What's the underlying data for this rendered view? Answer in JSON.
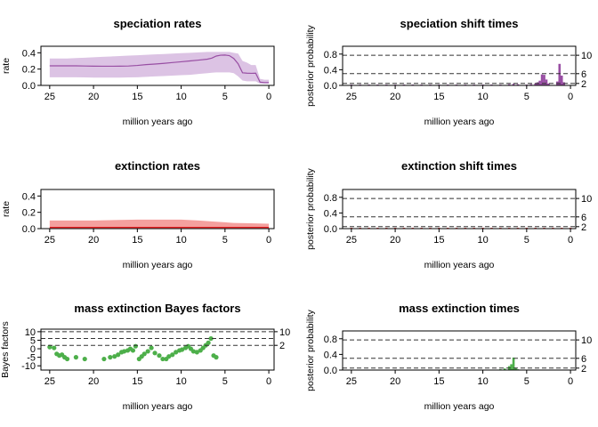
{
  "chart_data": [
    {
      "id": "spec_rates",
      "type": "area",
      "title": "speciation rates",
      "xlabel": "million years ago",
      "ylabel": "rate",
      "xlim": [
        26,
        -0.6
      ],
      "ylim": [
        0,
        0.48
      ],
      "xticks": [
        25,
        20,
        15,
        10,
        5,
        0
      ],
      "yticks": [
        0.0,
        0.2,
        0.4
      ],
      "ytick_labels": [
        "0.0",
        "0.2",
        "0.4"
      ],
      "color": "#984EA3",
      "band_color": "#DCC3E4",
      "x": [
        25,
        24,
        23,
        22,
        21,
        20,
        19,
        18,
        17,
        16,
        15,
        14,
        13,
        12,
        11,
        10,
        9,
        8,
        7,
        6.5,
        6,
        5.5,
        5,
        4.5,
        4,
        3.5,
        3,
        2.5,
        2,
        1.5,
        1,
        0.5,
        0
      ],
      "mean": [
        0.24,
        0.24,
        0.24,
        0.24,
        0.238,
        0.236,
        0.235,
        0.235,
        0.236,
        0.238,
        0.245,
        0.255,
        0.262,
        0.27,
        0.28,
        0.29,
        0.3,
        0.31,
        0.322,
        0.335,
        0.36,
        0.37,
        0.372,
        0.365,
        0.33,
        0.265,
        0.155,
        0.15,
        0.148,
        0.15,
        0.04,
        0.035,
        0.035
      ],
      "lower": [
        0.1,
        0.1,
        0.1,
        0.1,
        0.098,
        0.096,
        0.095,
        0.095,
        0.096,
        0.098,
        0.1,
        0.105,
        0.11,
        0.115,
        0.12,
        0.125,
        0.13,
        0.14,
        0.15,
        0.155,
        0.16,
        0.16,
        0.16,
        0.16,
        0.15,
        0.11,
        0.06,
        0.05,
        0.05,
        0.05,
        0.02,
        0.02,
        0.02
      ],
      "upper": [
        0.33,
        0.33,
        0.33,
        0.335,
        0.34,
        0.345,
        0.35,
        0.355,
        0.36,
        0.365,
        0.37,
        0.375,
        0.38,
        0.385,
        0.39,
        0.395,
        0.4,
        0.405,
        0.41,
        0.41,
        0.41,
        0.41,
        0.41,
        0.41,
        0.4,
        0.39,
        0.3,
        0.28,
        0.25,
        0.25,
        0.08,
        0.07,
        0.07
      ]
    },
    {
      "id": "spec_shift",
      "type": "bar",
      "title": "speciation shift times",
      "xlabel": "million years ago",
      "ylabel": "posterior probability",
      "xlim": [
        26,
        -0.6
      ],
      "ylim": [
        0,
        1.0
      ],
      "xticks": [
        25,
        20,
        15,
        10,
        5,
        0
      ],
      "yticks": [
        0.0,
        0.4,
        0.8
      ],
      "ytick_labels": [
        "0.0",
        "0.4",
        "0.8"
      ],
      "color": "#984EA3",
      "x": [
        25,
        24,
        23,
        22,
        21,
        20,
        19,
        18,
        17,
        16,
        15,
        14,
        13,
        12,
        11,
        10,
        9,
        8,
        7,
        6.5,
        6,
        5,
        4.5,
        4,
        3.75,
        3.5,
        3.25,
        3.0,
        2.75,
        2.5,
        1.5,
        1.25,
        1.0,
        0.75
      ],
      "values": [
        0.02,
        0.02,
        0.02,
        0.02,
        0.02,
        0.02,
        0.02,
        0.02,
        0.02,
        0.02,
        0.02,
        0.02,
        0.02,
        0.02,
        0.02,
        0.02,
        0.02,
        0.02,
        0.03,
        0.04,
        0.03,
        0.02,
        0.03,
        0.05,
        0.08,
        0.12,
        0.28,
        0.27,
        0.15,
        0.05,
        0.1,
        0.55,
        0.25,
        0.08
      ],
      "ref_lines": [
        0.77,
        0.3,
        0.05
      ],
      "ref_labels": [
        "10",
        "6",
        "2"
      ]
    },
    {
      "id": "ext_rates",
      "type": "area",
      "title": "extinction rates",
      "xlabel": "million years ago",
      "ylabel": "rate",
      "xlim": [
        26,
        -0.6
      ],
      "ylim": [
        0,
        0.48
      ],
      "xticks": [
        25,
        20,
        15,
        10,
        5,
        0
      ],
      "yticks": [
        0.0,
        0.2,
        0.4
      ],
      "ytick_labels": [
        "0.0",
        "0.2",
        "0.4"
      ],
      "color": "#E41A1C",
      "band_color": "#F4A09E",
      "x": [
        25,
        20,
        15,
        10,
        8,
        6,
        4,
        2,
        0
      ],
      "mean": [
        0.015,
        0.015,
        0.015,
        0.015,
        0.015,
        0.015,
        0.015,
        0.015,
        0.015
      ],
      "lower": [
        0.0,
        0.0,
        0.0,
        0.0,
        0.0,
        0.0,
        0.0,
        0.0,
        0.0
      ],
      "upper": [
        0.1,
        0.1,
        0.11,
        0.11,
        0.1,
        0.085,
        0.07,
        0.065,
        0.06
      ]
    },
    {
      "id": "ext_shift",
      "type": "bar",
      "title": "extinction shift times",
      "xlabel": "million years ago",
      "ylabel": "posterior probability",
      "xlim": [
        26,
        -0.6
      ],
      "ylim": [
        0,
        1.0
      ],
      "xticks": [
        25,
        20,
        15,
        10,
        5,
        0
      ],
      "yticks": [
        0.0,
        0.4,
        0.8
      ],
      "ytick_labels": [
        "0.0",
        "0.4",
        "0.8"
      ],
      "color": "#E41A1C",
      "x": [
        25,
        24,
        23,
        22,
        21,
        20,
        19,
        18,
        17,
        16,
        15,
        14,
        13,
        12,
        11,
        10,
        9,
        8,
        7,
        6,
        5,
        4,
        3,
        2,
        1,
        0
      ],
      "values": [
        0.02,
        0.02,
        0.02,
        0.02,
        0.02,
        0.02,
        0.02,
        0.02,
        0.02,
        0.02,
        0.02,
        0.02,
        0.02,
        0.02,
        0.02,
        0.02,
        0.02,
        0.02,
        0.02,
        0.02,
        0.02,
        0.02,
        0.02,
        0.02,
        0.02,
        0.02
      ],
      "ref_lines": [
        0.77,
        0.3,
        0.05
      ],
      "ref_labels": [
        "10",
        "6",
        "2"
      ]
    },
    {
      "id": "mass_bf",
      "type": "scatter",
      "title": "mass extinction Bayes factors",
      "xlabel": "million years ago",
      "ylabel": "Bayes factors",
      "xlim": [
        26,
        -0.6
      ],
      "ylim": [
        -12.5,
        11.5
      ],
      "xticks": [
        25,
        20,
        15,
        10,
        5,
        0
      ],
      "yticks": [
        10,
        5,
        0,
        -5,
        -10
      ],
      "ytick_labels": [
        "10",
        "5",
        "0",
        "-5",
        "-10"
      ],
      "color": "#4DAF4A",
      "ref_lines": [
        10,
        6,
        2
      ],
      "ref_labels": [
        "10",
        "6",
        "2"
      ],
      "right_labels": [
        "10",
        "2"
      ],
      "x": [
        25.0,
        24.5,
        24.2,
        23.9,
        23.6,
        23.3,
        23.0,
        22.0,
        21.0,
        18.8,
        18.1,
        17.6,
        17.2,
        16.8,
        16.5,
        16.1,
        15.8,
        15.5,
        15.2,
        14.8,
        14.5,
        14.2,
        13.8,
        13.4,
        13.0,
        12.5,
        12.1,
        11.7,
        11.4,
        11.0,
        10.6,
        10.2,
        9.9,
        9.5,
        9.2,
        8.9,
        8.6,
        8.2,
        7.8,
        7.5,
        7.2,
        6.9,
        6.6,
        6.3,
        6.0
      ],
      "y": [
        1.0,
        0.5,
        -3.0,
        -4.0,
        -3.5,
        -5.0,
        -6.0,
        -5.0,
        -6.0,
        -6.0,
        -5.0,
        -4.5,
        -3.5,
        -2.0,
        -1.5,
        -1.0,
        0.0,
        -1.0,
        1.5,
        -6.0,
        -4.5,
        -3.0,
        -1.5,
        0.5,
        -2.5,
        -4.0,
        -6.0,
        -6.0,
        -4.5,
        -3.5,
        -2.0,
        -1.0,
        -0.5,
        0.5,
        1.5,
        0.0,
        -1.5,
        -2.0,
        -1.0,
        0.5,
        2.0,
        3.5,
        6.0,
        -4.0,
        -5.0
      ]
    },
    {
      "id": "mass_times",
      "type": "bar",
      "title": "mass extinction times",
      "xlabel": "million years ago",
      "ylabel": "posterior probability",
      "xlim": [
        26,
        -0.6
      ],
      "ylim": [
        0,
        1.0
      ],
      "xticks": [
        25,
        20,
        15,
        10,
        5,
        0
      ],
      "yticks": [
        0.0,
        0.4,
        0.8
      ],
      "ytick_labels": [
        "0.0",
        "0.4",
        "0.8"
      ],
      "color": "#4DAF4A",
      "x": [
        25,
        24,
        23,
        22,
        21,
        20,
        19,
        18,
        17,
        16,
        15,
        14,
        13,
        12,
        11,
        10,
        9,
        8,
        7.5,
        7.0,
        6.75,
        6.5,
        6.25,
        6,
        5,
        4,
        3,
        2,
        1,
        0
      ],
      "values": [
        0.01,
        0.01,
        0.01,
        0.01,
        0.01,
        0.01,
        0.01,
        0.01,
        0.01,
        0.01,
        0.01,
        0.01,
        0.01,
        0.01,
        0.01,
        0.01,
        0.01,
        0.02,
        0.04,
        0.1,
        0.15,
        0.32,
        0.06,
        0.02,
        0.01,
        0.01,
        0.01,
        0.01,
        0.01,
        0.01
      ],
      "ref_lines": [
        0.77,
        0.3,
        0.05
      ],
      "ref_labels": [
        "10",
        "6",
        "2"
      ]
    }
  ]
}
